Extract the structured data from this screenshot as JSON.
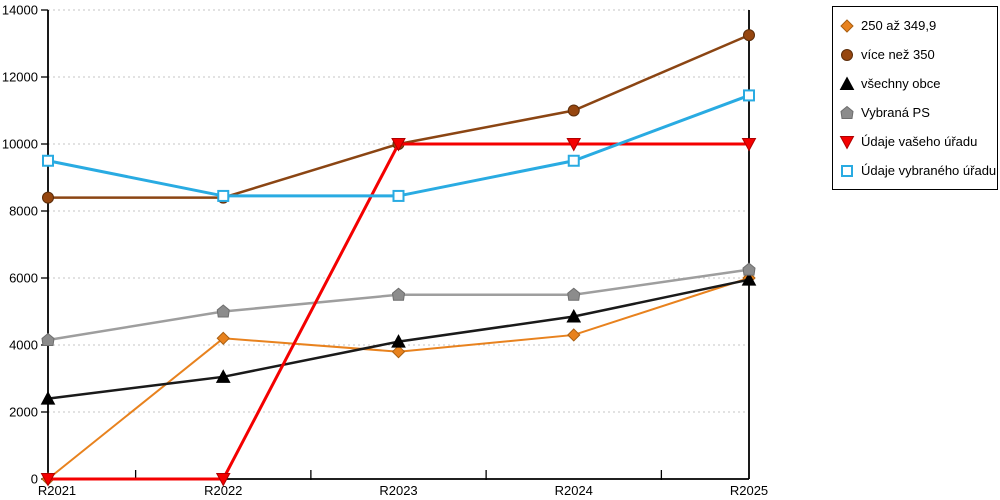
{
  "chart_data": {
    "type": "line",
    "categories": [
      "R2021",
      "R2022",
      "R2023",
      "R2024",
      "R2025"
    ],
    "series": [
      {
        "name": "250 až 349,9",
        "marker": "diamond",
        "color": "#E8821E",
        "marker_fill": "#E8821E",
        "marker_stroke": "#A85E10",
        "line_width": 2,
        "values": [
          0,
          4200,
          3800,
          4300,
          6000
        ]
      },
      {
        "name": "více než 350",
        "marker": "circle",
        "color": "#8B4513",
        "marker_fill": "#96460F",
        "marker_stroke": "#5C2D0A",
        "line_width": 2.5,
        "values": [
          8400,
          8400,
          10000,
          11000,
          13250
        ]
      },
      {
        "name": "všechny obce",
        "marker": "triangle-up",
        "color": "#1A1A1A",
        "marker_fill": "#000000",
        "marker_stroke": "#000000",
        "line_width": 2.5,
        "values": [
          2400,
          3050,
          4100,
          4850,
          5950
        ]
      },
      {
        "name": "Vybraná PS",
        "marker": "pentagon",
        "color": "#9E9E9E",
        "marker_fill": "#8C8C8C",
        "marker_stroke": "#6E6E6E",
        "line_width": 2.5,
        "values": [
          4150,
          5000,
          5500,
          5500,
          6250
        ]
      },
      {
        "name": "Údaje vašeho úřadu",
        "marker": "triangle-down",
        "color": "#F40000",
        "marker_fill": "#F40000",
        "marker_stroke": "#B00000",
        "line_width": 3,
        "values": [
          0,
          0,
          10000,
          10000,
          10000
        ]
      },
      {
        "name": "Údaje vybraného úřadu",
        "marker": "square-open",
        "color": "#29ABE2",
        "marker_fill": "#FFFFFF",
        "marker_stroke": "#29ABE2",
        "line_width": 3,
        "values": [
          9500,
          8450,
          8450,
          9500,
          11450
        ]
      }
    ],
    "title": "",
    "xlabel": "",
    "ylabel": "",
    "ylim": [
      0,
      14000
    ],
    "y_tick_step": 2000,
    "y_tick_labels": [
      "0",
      "2000",
      "4000",
      "6000",
      "8000",
      "10000",
      "12000",
      "14000"
    ],
    "grid": "horizontal-dashed",
    "grid_color": "#C4C4C4",
    "axis_color": "#000000",
    "legend_position": "top-right"
  }
}
